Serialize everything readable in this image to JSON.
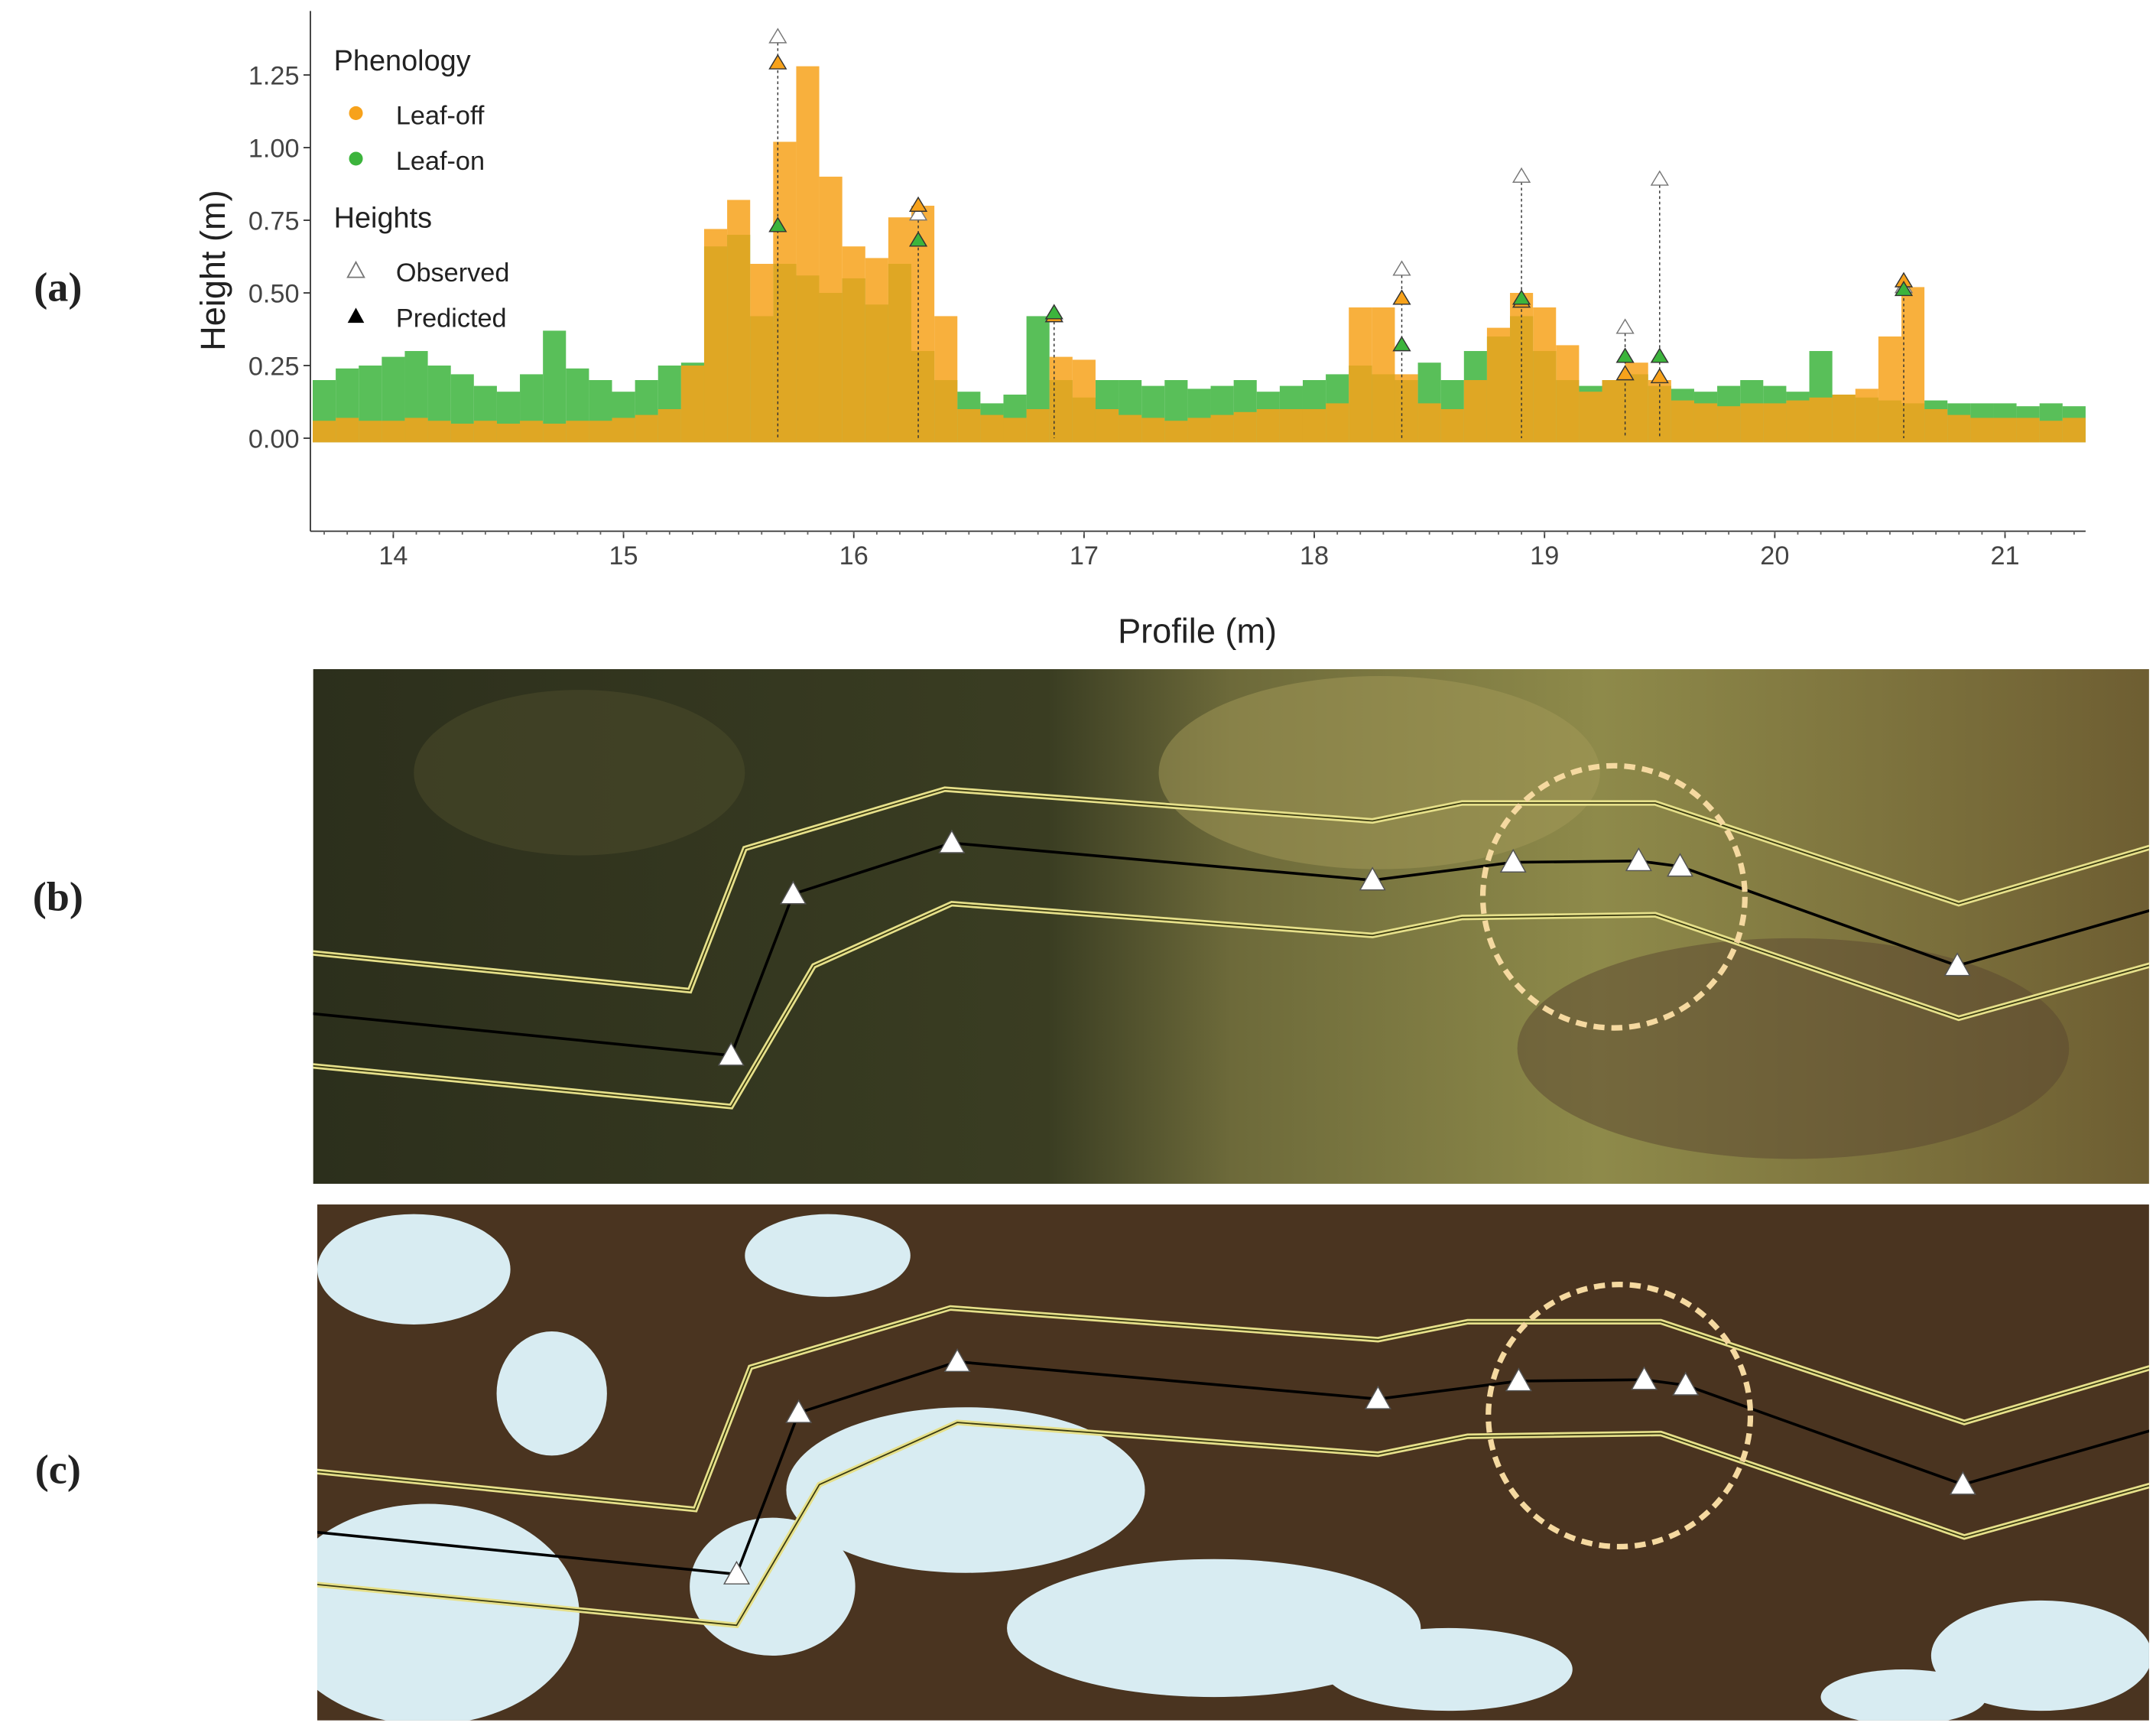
{
  "panel_labels": [
    "(a)",
    "(b)",
    "(c)"
  ],
  "chart_data": {
    "type": "scatter",
    "x_label": "Profile (m)",
    "y_label": "Height (m)",
    "xlim": [
      13.64,
      21.35
    ],
    "xticks": [
      14,
      15,
      16,
      17,
      18,
      19,
      20,
      21
    ],
    "ylim": [
      -0.32,
      1.47
    ],
    "yticks": [
      {
        "value": 0,
        "label": "0.00"
      },
      {
        "value": 0.25,
        "label": "0.25"
      },
      {
        "value": 0.5,
        "label": "0.50"
      },
      {
        "value": 0.75,
        "label": "0.75"
      },
      {
        "value": 1,
        "label": "1.00"
      },
      {
        "value": 1.25,
        "label": "1.25"
      }
    ],
    "legend_title": "Phenology",
    "x": [
      13.7,
      13.8,
      13.9,
      14.0,
      14.1,
      14.2,
      14.3,
      14.4,
      14.5,
      14.6,
      14.7,
      14.8,
      14.9,
      15.0,
      15.1,
      15.2,
      15.3,
      15.4,
      15.5,
      15.6,
      15.7,
      15.8,
      15.9,
      16.0,
      16.1,
      16.2,
      16.3,
      16.4,
      16.5,
      16.6,
      16.7,
      16.8,
      16.9,
      17.0,
      17.1,
      17.2,
      17.3,
      17.4,
      17.5,
      17.6,
      17.7,
      17.8,
      17.9,
      18.0,
      18.1,
      18.2,
      18.3,
      18.4,
      18.5,
      18.6,
      18.7,
      18.8,
      18.9,
      19.0,
      19.1,
      19.2,
      19.3,
      19.4,
      19.5,
      19.6,
      19.7,
      19.8,
      19.9,
      20.0,
      20.1,
      20.2,
      20.3,
      20.4,
      20.5,
      20.6,
      20.7,
      20.8,
      20.9,
      21.0,
      21.1,
      21.2,
      21.3
    ],
    "series": [
      {
        "name": "Leaf-on",
        "color": "#3cb43c",
        "values": [
          0.2,
          0.24,
          0.25,
          0.28,
          0.3,
          0.25,
          0.22,
          0.18,
          0.16,
          0.22,
          0.37,
          0.24,
          0.2,
          0.16,
          0.2,
          0.25,
          0.26,
          0.66,
          0.7,
          0.42,
          0.6,
          0.56,
          0.5,
          0.55,
          0.46,
          0.6,
          0.3,
          0.2,
          0.16,
          0.12,
          0.15,
          0.42,
          0.2,
          0.14,
          0.2,
          0.2,
          0.18,
          0.2,
          0.17,
          0.18,
          0.2,
          0.16,
          0.18,
          0.2,
          0.22,
          0.25,
          0.22,
          0.2,
          0.26,
          0.2,
          0.3,
          0.35,
          0.42,
          0.3,
          0.2,
          0.18,
          0.2,
          0.22,
          0.18,
          0.17,
          0.16,
          0.18,
          0.2,
          0.18,
          0.16,
          0.3,
          0.15,
          0.14,
          0.13,
          0.12,
          0.13,
          0.12,
          0.12,
          0.12,
          0.11,
          0.12,
          0.11
        ]
      },
      {
        "name": "Leaf-off",
        "color": "#f7a21b",
        "values": [
          0.06,
          0.07,
          0.06,
          0.06,
          0.07,
          0.06,
          0.05,
          0.06,
          0.05,
          0.06,
          0.05,
          0.06,
          0.06,
          0.07,
          0.08,
          0.1,
          0.25,
          0.72,
          0.82,
          0.6,
          1.02,
          1.28,
          0.9,
          0.66,
          0.62,
          0.76,
          0.8,
          0.42,
          0.1,
          0.08,
          0.07,
          0.1,
          0.28,
          0.27,
          0.1,
          0.08,
          0.07,
          0.06,
          0.07,
          0.08,
          0.09,
          0.1,
          0.1,
          0.1,
          0.12,
          0.45,
          0.45,
          0.22,
          0.12,
          0.1,
          0.2,
          0.38,
          0.5,
          0.45,
          0.32,
          0.16,
          0.2,
          0.26,
          0.2,
          0.13,
          0.12,
          0.11,
          0.12,
          0.12,
          0.13,
          0.14,
          0.15,
          0.17,
          0.35,
          0.52,
          0.1,
          0.08,
          0.07,
          0.07,
          0.07,
          0.06,
          0.07
        ]
      }
    ],
    "heights": {
      "title": "Heights",
      "x": [
        15.67,
        16.28,
        16.87,
        18.38,
        18.9,
        19.35,
        19.5,
        20.56
      ],
      "observed": {
        "name": "Observed",
        "values": [
          1.38,
          0.77,
          0.42,
          0.58,
          0.9,
          0.38,
          0.89,
          0.52
        ]
      },
      "predicted": {
        "name": "Predicted",
        "leaf_off": [
          1.29,
          0.8,
          0.42,
          0.48,
          0.47,
          0.22,
          0.21,
          0.54
        ],
        "leaf_on": [
          0.73,
          0.68,
          0.43,
          0.32,
          0.48,
          0.28,
          0.28,
          0.51
        ]
      }
    }
  }
}
